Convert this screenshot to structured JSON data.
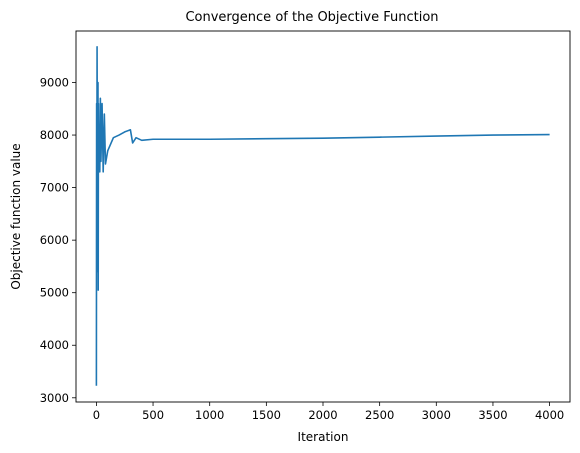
{
  "chart_data": {
    "type": "line",
    "title": "Convergence of the Objective Function",
    "xlabel": "Iteration",
    "ylabel": "Objective function value",
    "xlim": [
      -180,
      4180
    ],
    "ylim": [
      2920,
      9980
    ],
    "xticks": [
      0,
      500,
      1000,
      1500,
      2000,
      2500,
      3000,
      3500,
      4000
    ],
    "yticks": [
      3000,
      4000,
      5000,
      6000,
      7000,
      8000,
      9000
    ],
    "grid": false,
    "color": "#1f77b4",
    "series": [
      {
        "x": [
          0,
          2,
          4,
          6,
          8,
          10,
          12,
          14,
          16,
          18,
          20,
          25,
          30,
          35,
          40,
          50,
          60,
          70,
          80,
          100,
          120,
          150,
          200,
          250,
          300,
          320,
          350,
          400,
          500,
          750,
          1000,
          1500,
          2000,
          2500,
          3000,
          3500,
          4000
        ],
        "y": [
          3230,
          8600,
          5400,
          9680,
          7850,
          8900,
          7200,
          9000,
          5050,
          8600,
          7800,
          8200,
          7300,
          8700,
          7500,
          8600,
          7300,
          8400,
          7450,
          7700,
          7800,
          7950,
          8000,
          8060,
          8100,
          7850,
          7950,
          7900,
          7920,
          7920,
          7920,
          7930,
          7940,
          7960,
          7980,
          8000,
          8010
        ]
      }
    ]
  }
}
